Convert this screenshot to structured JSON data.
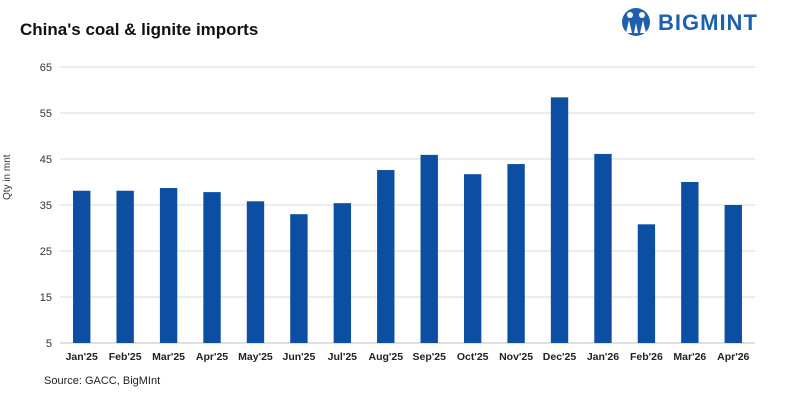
{
  "header": {
    "brand_name": "BIGMINT"
  },
  "source_text": "Source: GACC, BigMInt",
  "colors": {
    "bar": "#0b4ea2",
    "brand": "#1f5fb0",
    "grid": "#d9d9d9"
  },
  "chart_data": {
    "type": "bar",
    "title": "China's coal & lignite imports",
    "xlabel": "",
    "ylabel": "Qty in mnt",
    "ylim": [
      5,
      65
    ],
    "yticks": [
      5,
      15,
      25,
      35,
      45,
      55,
      65
    ],
    "grid": true,
    "categories": [
      "Jan'25",
      "Feb'25",
      "Mar'25",
      "Apr'25",
      "May'25",
      "Jun'25",
      "Jul'25",
      "Aug'25",
      "Sep'25",
      "Oct'25",
      "Nov'25",
      "Dec'25",
      "Jan'26",
      "Feb'26",
      "Mar'26",
      "Apr'26"
    ],
    "values": [
      38.1,
      38.1,
      38.7,
      37.8,
      35.8,
      33.0,
      35.4,
      42.6,
      45.9,
      41.7,
      43.9,
      58.4,
      46.1,
      30.8,
      40.0,
      35.0
    ]
  }
}
